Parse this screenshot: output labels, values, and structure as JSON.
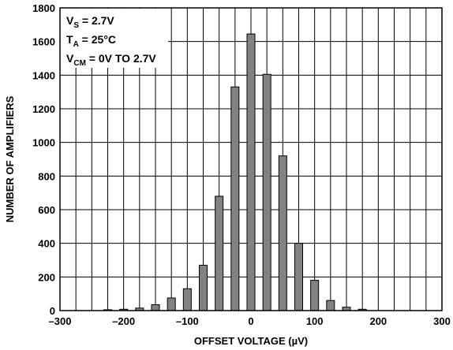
{
  "chart_data": {
    "type": "bar",
    "title": "",
    "xlabel": "OFFSET VOLTAGE (µV)",
    "ylabel": "NUMBER OF AMPLIFIERS",
    "xlim": [
      -300,
      300
    ],
    "ylim": [
      0,
      1800
    ],
    "xticks": [
      -300,
      -200,
      -100,
      0,
      100,
      200,
      300
    ],
    "xtick_labels": [
      "–300",
      "–200",
      "–100",
      "0",
      "100",
      "200",
      "300"
    ],
    "yticks": [
      0,
      200,
      400,
      600,
      800,
      1000,
      1200,
      1400,
      1600,
      1800
    ],
    "ytick_labels": [
      "0",
      "200",
      "400",
      "600",
      "800",
      "1000",
      "1200",
      "1400",
      "1600",
      "1800"
    ],
    "grid": true,
    "x": [
      -225,
      -200,
      -175,
      -150,
      -125,
      -100,
      -75,
      -50,
      -25,
      0,
      25,
      50,
      75,
      100,
      125,
      150,
      175
    ],
    "values": [
      5,
      8,
      15,
      35,
      75,
      130,
      270,
      680,
      1330,
      1645,
      1405,
      920,
      400,
      180,
      60,
      20,
      8
    ],
    "bar_color": "#828282",
    "annotations": [
      {
        "main": "V",
        "sub": "S",
        "rest": " = 2.7V"
      },
      {
        "main": "T",
        "sub": "A",
        "rest": " = 25°C"
      },
      {
        "main": "V",
        "sub": "CM",
        "rest": " = 0V TO 2.7V"
      }
    ]
  }
}
